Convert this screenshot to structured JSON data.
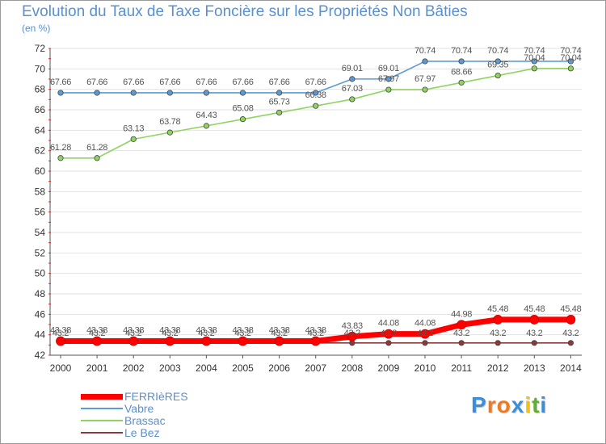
{
  "chart_data": {
    "type": "line",
    "title": "Evolution du Taux de Taxe Foncière sur les Propriétés Non Bâties",
    "ylabel": "(en %)",
    "xlabel": "",
    "ylim": [
      42,
      72
    ],
    "yticks": [
      "42",
      "44",
      "46",
      "48",
      "50",
      "52",
      "54",
      "56",
      "58",
      "60",
      "62",
      "64",
      "66",
      "68",
      "70",
      "72"
    ],
    "categories": [
      "2000",
      "2001",
      "2002",
      "2003",
      "2004",
      "2005",
      "2006",
      "2007",
      "2008",
      "2009",
      "2010",
      "2011",
      "2012",
      "2013",
      "2014"
    ],
    "series": [
      {
        "name": "FERRIèRES",
        "color": "#ff0000",
        "values": [
          43.38,
          43.38,
          43.38,
          43.38,
          43.38,
          43.38,
          43.38,
          43.38,
          43.83,
          44.08,
          44.08,
          44.98,
          45.48,
          45.48,
          45.48
        ],
        "labels": [
          "43.38",
          "43.38",
          "43.38",
          "43.38",
          "43.38",
          "43.38",
          "43.38",
          "43.38",
          "43.83",
          "44.08",
          "44.08",
          "44.98",
          "45.48",
          "45.48",
          "45.48"
        ]
      },
      {
        "name": "Vabre",
        "color": "#5b9bd5",
        "values": [
          67.66,
          67.66,
          67.66,
          67.66,
          67.66,
          67.66,
          67.66,
          67.66,
          69.01,
          69.01,
          70.74,
          70.74,
          70.74,
          70.74,
          70.74
        ],
        "labels": [
          "67.66",
          "67.66",
          "67.66",
          "67.66",
          "67.66",
          "67.66",
          "67.66",
          "67.66",
          "69.01",
          "69.01",
          "70.74",
          "70.74",
          "70.74",
          "70.74",
          "70.74"
        ]
      },
      {
        "name": "Brassac",
        "color": "#8fd460",
        "values": [
          61.28,
          61.28,
          63.13,
          63.78,
          64.43,
          65.08,
          65.73,
          66.38,
          67.03,
          67.97,
          67.97,
          68.66,
          69.35,
          70.04,
          70.04
        ],
        "labels": [
          "61.28",
          "61.28",
          "63.13",
          "63.78",
          "64.43",
          "65.08",
          "65.73",
          "66.38",
          "67.03",
          "67.97",
          "67.97",
          "68.66",
          "69.35",
          "70.04",
          "70.04"
        ]
      },
      {
        "name": "Le Bez",
        "color": "#8a3a3a",
        "values": [
          43.2,
          43.2,
          43.2,
          43.2,
          43.2,
          43.2,
          43.2,
          43.2,
          43.2,
          43.2,
          43.2,
          43.2,
          43.2,
          43.2,
          43.2
        ],
        "labels": [
          "43.2",
          "43.2",
          "43.2",
          "43.2",
          "43.2",
          "43.2",
          "43.2",
          "43.2",
          "43.2",
          "43.2",
          "43.2",
          "43.2",
          "43.2",
          "43.2",
          "43.2"
        ]
      }
    ],
    "legend_position": "bottom-left"
  },
  "logo": {
    "letters": [
      "P",
      "r",
      "o",
      "x",
      "i",
      "t",
      "i"
    ],
    "colors": [
      "#3a8fd8",
      "#f07a20",
      "#f07a20",
      "#3a8fd8",
      "#f0c020",
      "#60b030",
      "#3a8fd8"
    ]
  }
}
